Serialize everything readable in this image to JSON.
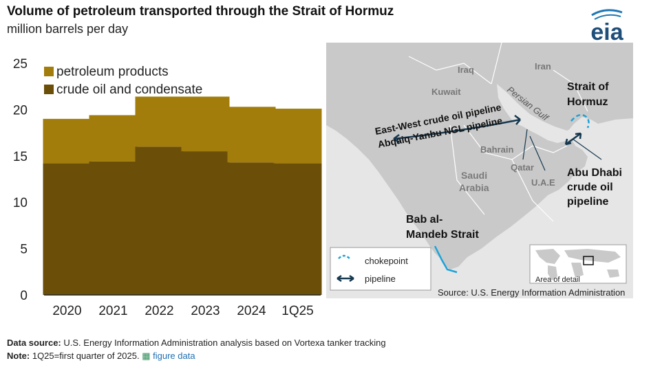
{
  "header": {
    "title": "Volume of petroleum transported through the Strait of Hormuz",
    "subtitle": "million barrels per day",
    "logo_text": "eia"
  },
  "chart_data": {
    "type": "bar",
    "stacked": true,
    "categories": [
      "2020",
      "2021",
      "2022",
      "2023",
      "2024",
      "1Q25"
    ],
    "series": [
      {
        "name": "crude oil and condensate",
        "values": [
          14.2,
          14.4,
          16.0,
          15.5,
          14.3,
          14.2
        ],
        "color": "#6b4f08"
      },
      {
        "name": "petroleum products",
        "values": [
          4.8,
          5.0,
          5.4,
          5.9,
          6.0,
          5.9
        ],
        "color": "#a27d0c"
      }
    ],
    "ylim": [
      0,
      25
    ],
    "yticks": [
      0,
      5,
      10,
      15,
      20,
      25
    ],
    "legend_position": "top-left",
    "grid": false
  },
  "map": {
    "labels": {
      "iraq": "Iraq",
      "iran": "Iran",
      "kuwait": "Kuwait",
      "persian_gulf": "Persian Gulf",
      "bahrain": "Bahrain",
      "qatar": "Qatar",
      "uae": "U.A.E",
      "saudi_line1": "Saudi",
      "saudi_line2": "Arabia",
      "hormuz_line1": "Strait of",
      "hormuz_line2": "Hormuz",
      "abu_line1": "Abu Dhabi",
      "abu_line2": "crude oil",
      "abu_line3": "pipeline",
      "eastwest": "East-West crude oil pipeline",
      "abqaiq": "Abqaiq-Yanbu NGL pipeline",
      "bab_line1": "Bab al-",
      "bab_line2": "Mandeb Strait"
    },
    "legend": {
      "chokepoint": "chokepoint",
      "pipeline": "pipeline"
    },
    "inset_label": "Area of detail",
    "source": "Source: U.S. Energy Information Administration",
    "colors": {
      "chokepoint": "#1aa3d9",
      "pipeline": "#15384f",
      "land": "#c9c9c9",
      "water": "#e6e6e6"
    }
  },
  "footer": {
    "data_source_label": "Data source:",
    "data_source_text": "U.S. Energy Information Administration analysis based on Vortexa tanker tracking",
    "note_label": "Note:",
    "note_text": "1Q25=first quarter of 2025.",
    "figure_data_link": "figure data"
  }
}
